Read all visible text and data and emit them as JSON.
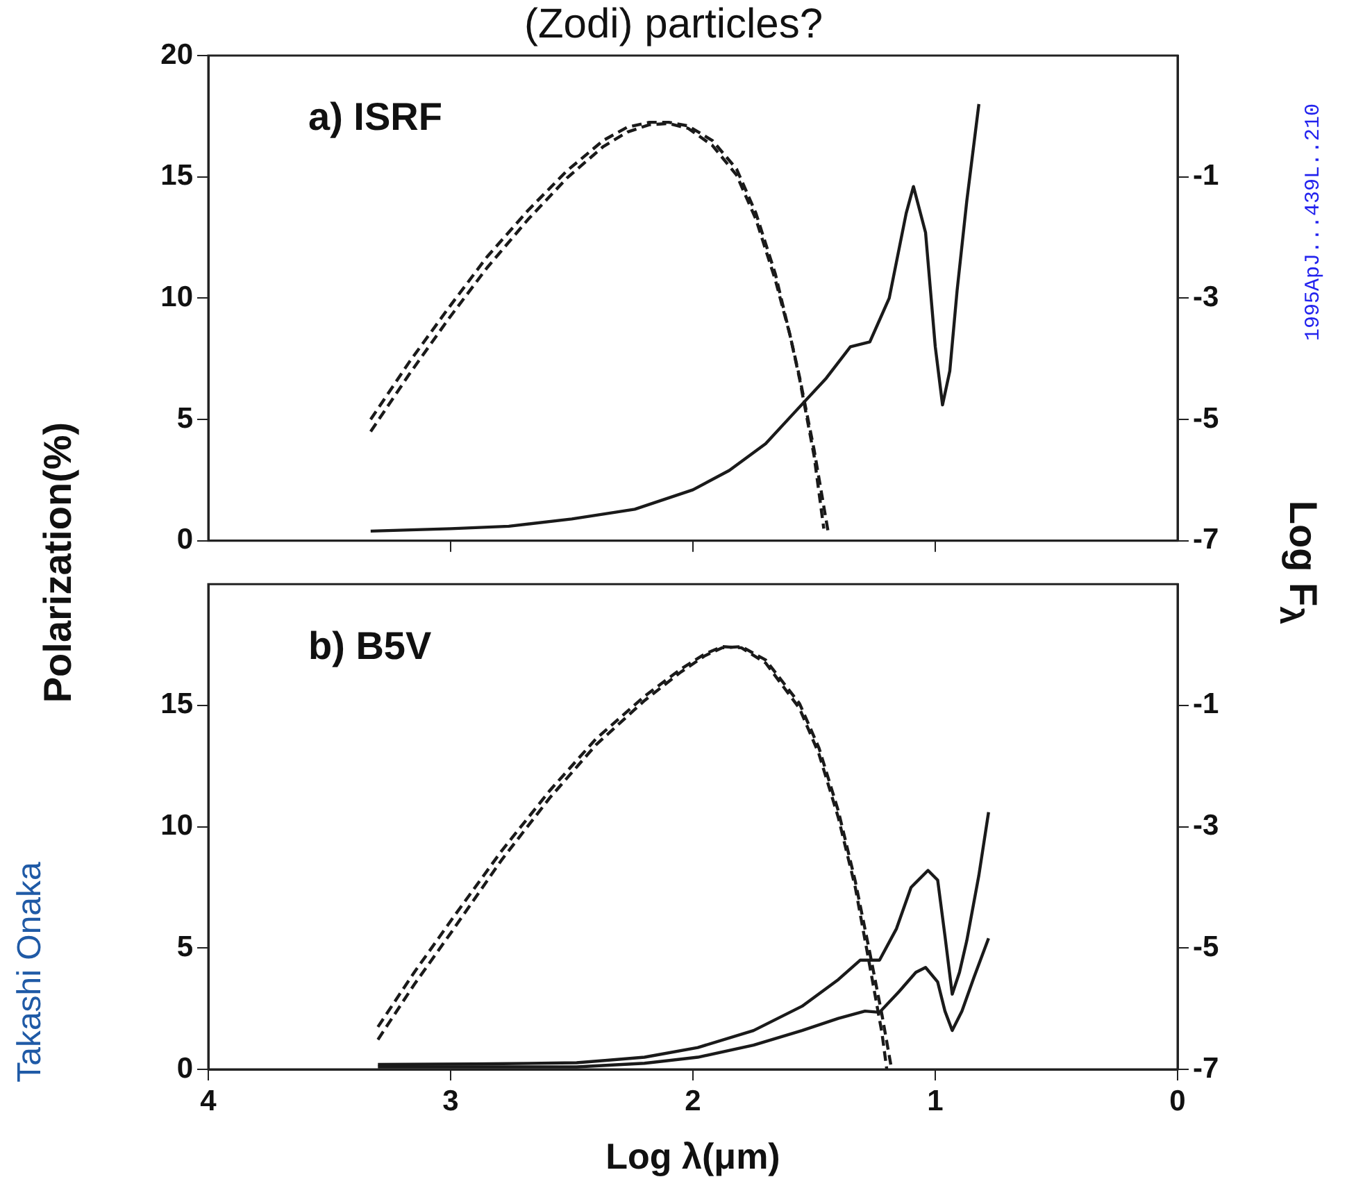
{
  "chart_data": [
    {
      "type": "line",
      "title": "(Zodi) particles?",
      "ylabel": "Polarization(%)",
      "y2label": "Log F$_{λ}$",
      "annotations": [
        "a) ISRF",
        "1995ApJ...439L..210",
        "Takashi Onaka"
      ],
      "xlim": [
        4,
        0
      ],
      "xticks": [
        {
          "value": 3,
          "label": null
        },
        {
          "value": 2,
          "label": null
        },
        {
          "value": 1,
          "label": null
        }
      ],
      "ylim": [
        0,
        20
      ],
      "yticks": [
        0,
        5,
        10,
        15,
        20
      ],
      "y2lim": [
        -7,
        1
      ],
      "y2ticks": [
        -7,
        -5,
        -3,
        -1
      ],
      "tick_labels": "y",
      "marker": "none",
      "legend": false,
      "series": [
        {
          "type": "line",
          "color": "#1a1a1a",
          "line_style": "solid",
          "x": [
            3.33,
            3.0,
            2.76,
            2.5,
            2.24,
            2.0,
            1.85,
            1.7,
            1.58,
            1.45,
            1.35,
            1.27,
            1.19,
            1.12,
            1.09,
            1.04,
            1.0,
            0.97,
            0.94,
            0.91,
            0.87,
            0.82
          ],
          "values": [
            0.4,
            0.5,
            0.6,
            0.9,
            1.3,
            2.1,
            2.9,
            4.0,
            5.3,
            6.7,
            8.0,
            8.2,
            10.0,
            13.5,
            14.6,
            12.7,
            8.0,
            5.6,
            7.0,
            10.3,
            14.0,
            18.0
          ]
        },
        {
          "type": "line",
          "color": "#1a1a1a",
          "line_style": "dashed",
          "axis": "y2",
          "x": [
            3.33,
            3.17,
            3.01,
            2.85,
            2.68,
            2.52,
            2.37,
            2.27,
            2.18,
            2.1,
            2.02,
            1.92,
            1.82,
            1.74,
            1.66,
            1.6,
            1.56,
            1.5,
            1.46
          ],
          "values": [
            -5.0,
            -4.05,
            -3.17,
            -2.32,
            -1.55,
            -0.9,
            -0.4,
            -0.18,
            -0.1,
            -0.1,
            -0.16,
            -0.4,
            -0.87,
            -1.6,
            -2.6,
            -3.6,
            -4.33,
            -5.6,
            -6.8
          ]
        },
        {
          "type": "line",
          "color": "#1a1a1a",
          "line_style": "dashed",
          "axis": "y2",
          "x": [
            3.33,
            3.17,
            3.01,
            2.85,
            2.68,
            2.52,
            2.37,
            2.27,
            2.18,
            2.1,
            2.02,
            1.92,
            1.82,
            1.74,
            1.66,
            1.6,
            1.56,
            1.5,
            1.44
          ],
          "values": [
            -5.2,
            -4.25,
            -3.35,
            -2.5,
            -1.7,
            -1.02,
            -0.5,
            -0.26,
            -0.14,
            -0.12,
            -0.2,
            -0.48,
            -0.97,
            -1.7,
            -2.7,
            -3.6,
            -4.3,
            -5.5,
            -6.9
          ]
        }
      ]
    },
    {
      "type": "line",
      "xlabel": "Log λ(μm)",
      "annotations": [
        "b) B5V"
      ],
      "xlim": [
        4,
        0
      ],
      "xticks": [
        4,
        3,
        2,
        1,
        0
      ],
      "ylim": [
        0,
        20
      ],
      "yticks": [
        0,
        5,
        10,
        15
      ],
      "y2lim": [
        -7,
        1
      ],
      "y2ticks": [
        -7,
        -5,
        -3,
        -1
      ],
      "marker": "none",
      "legend": false,
      "series": [
        {
          "type": "line",
          "color": "#1a1a1a",
          "line_style": "solid",
          "x": [
            3.3,
            2.9,
            2.48,
            2.2,
            1.98,
            1.75,
            1.55,
            1.4,
            1.31,
            1.23,
            1.16,
            1.1,
            1.03,
            0.99,
            0.96,
            0.93,
            0.9,
            0.87,
            0.82,
            0.78
          ],
          "values": [
            0.2,
            0.22,
            0.27,
            0.5,
            0.9,
            1.6,
            2.6,
            3.7,
            4.5,
            4.5,
            5.8,
            7.5,
            8.2,
            7.8,
            5.5,
            3.1,
            4.0,
            5.3,
            8.0,
            10.6
          ]
        },
        {
          "type": "line",
          "color": "#1a1a1a",
          "line_style": "solid",
          "x": [
            3.3,
            2.9,
            2.48,
            2.2,
            1.98,
            1.75,
            1.55,
            1.4,
            1.29,
            1.23,
            1.15,
            1.08,
            1.04,
            0.99,
            0.96,
            0.93,
            0.89,
            0.84,
            0.78
          ],
          "values": [
            0.1,
            0.1,
            0.1,
            0.25,
            0.5,
            1.0,
            1.6,
            2.1,
            2.4,
            2.35,
            3.2,
            4.0,
            4.2,
            3.6,
            2.4,
            1.6,
            2.4,
            3.8,
            5.4
          ]
        },
        {
          "type": "line",
          "color": "#1a1a1a",
          "line_style": "dashed",
          "axis": "y2",
          "x": [
            3.3,
            3.15,
            2.99,
            2.79,
            2.59,
            2.4,
            2.2,
            2.05,
            1.95,
            1.88,
            1.8,
            1.7,
            1.56,
            1.48,
            1.4,
            1.33,
            1.27,
            1.22,
            1.18
          ],
          "values": [
            -6.51,
            -5.6,
            -4.7,
            -3.55,
            -2.52,
            -1.65,
            -0.92,
            -0.45,
            -0.18,
            -0.05,
            -0.03,
            -0.25,
            -0.97,
            -1.7,
            -2.74,
            -3.9,
            -5.08,
            -6.1,
            -7.0
          ]
        },
        {
          "type": "line",
          "color": "#1a1a1a",
          "line_style": "dashed",
          "axis": "y2",
          "x": [
            3.3,
            3.15,
            2.99,
            2.79,
            2.59,
            2.4,
            2.2,
            2.05,
            1.95,
            1.88,
            1.8,
            1.7,
            1.56,
            1.48,
            1.4,
            1.33,
            1.27,
            1.22,
            1.2
          ],
          "values": [
            -6.3,
            -5.4,
            -4.5,
            -3.4,
            -2.4,
            -1.55,
            -0.85,
            -0.4,
            -0.15,
            -0.03,
            -0.05,
            -0.3,
            -1.05,
            -1.8,
            -2.85,
            -4.0,
            -5.3,
            -6.4,
            -7.0
          ]
        }
      ]
    }
  ]
}
